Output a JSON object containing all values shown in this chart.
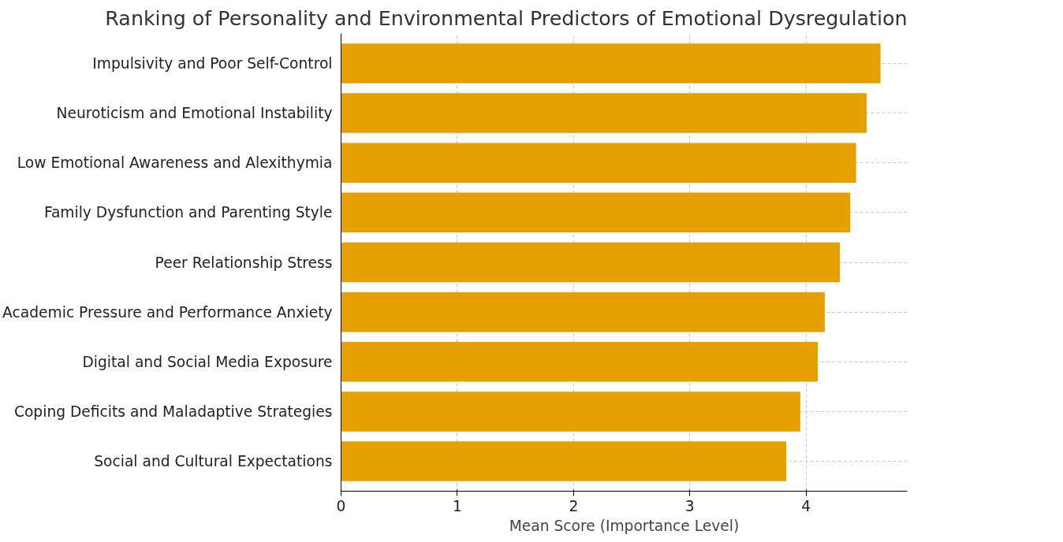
{
  "chart_data": {
    "type": "bar",
    "orientation": "horizontal",
    "title": "Ranking of Personality and Environmental Predictors of Emotional Dysregulation",
    "xlabel": "Mean Score (Importance Level)",
    "categories": [
      "Impulsivity and Poor Self-Control",
      "Neuroticism and Emotional Instability",
      "Low Emotional Awareness and Alexithymia",
      "Family Dysfunction and Parenting Style",
      "Peer Relationship Stress",
      "Academic Pressure and Performance Anxiety",
      "Digital and Social Media Exposure",
      "Coping Deficits and Maladaptive Strategies",
      "Social and Cultural Expectations"
    ],
    "values": [
      4.64,
      4.52,
      4.43,
      4.38,
      4.29,
      4.16,
      4.1,
      3.95,
      3.83
    ],
    "color": "#e6a000",
    "xlim": [
      0,
      4.87
    ],
    "xticks": [
      0,
      1,
      2,
      3,
      4
    ],
    "grid": true
  }
}
